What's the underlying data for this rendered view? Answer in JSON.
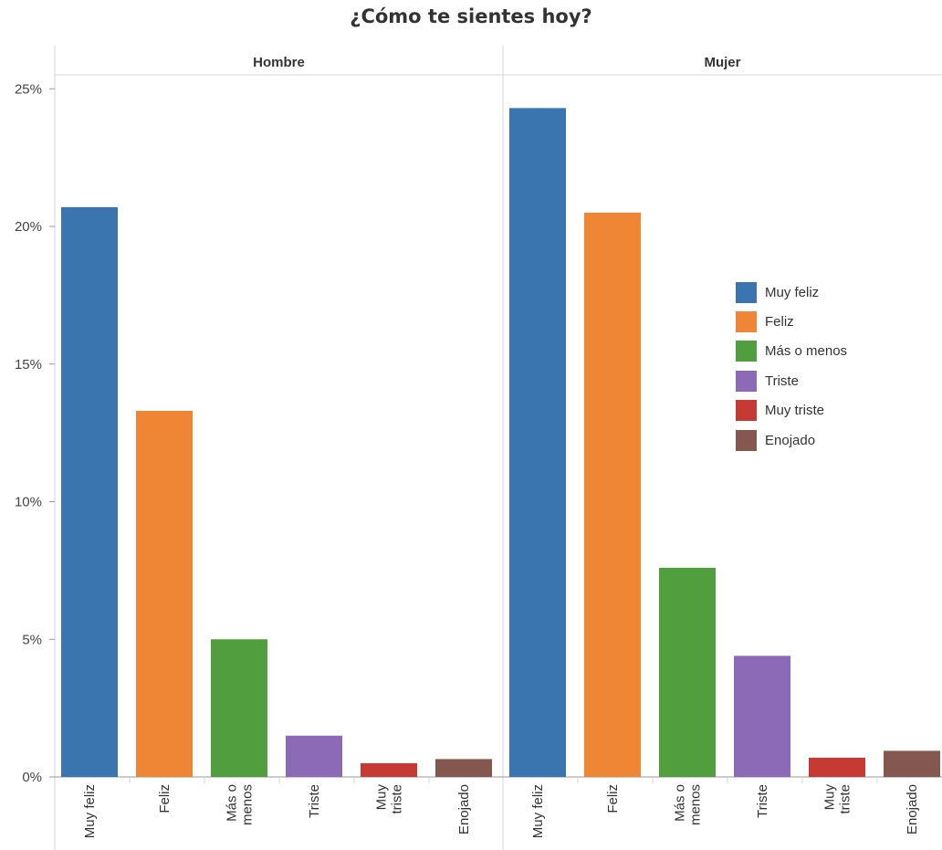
{
  "chart_data": {
    "type": "bar",
    "title": "¿Cómo te sientes hoy?",
    "xlabel": "",
    "ylabel": "",
    "ylim": [
      0,
      26
    ],
    "yticks": [
      0,
      5,
      10,
      15,
      20,
      25
    ],
    "ytick_labels": [
      "0%",
      "5%",
      "10%",
      "15%",
      "20%",
      "25%"
    ],
    "grid": false,
    "legend_position": "right",
    "categories": [
      "Muy feliz",
      "Feliz",
      "Más o menos",
      "Triste",
      "Muy triste",
      "Enojado"
    ],
    "category_labels": [
      [
        "Muy feliz"
      ],
      [
        "Feliz"
      ],
      [
        "Más o",
        "menos"
      ],
      [
        "Triste"
      ],
      [
        "Muy",
        "triste"
      ],
      [
        "Enojado"
      ]
    ],
    "colors": [
      "#3a75b0",
      "#ef8636",
      "#519e3e",
      "#8d6ab8",
      "#c53a32",
      "#84584e"
    ],
    "panels": [
      {
        "name": "Hombre",
        "values": [
          20.7,
          13.3,
          5.0,
          1.5,
          0.5,
          0.65
        ]
      },
      {
        "name": "Mujer",
        "values": [
          24.3,
          20.5,
          7.6,
          4.4,
          0.7,
          0.95
        ]
      }
    ]
  }
}
